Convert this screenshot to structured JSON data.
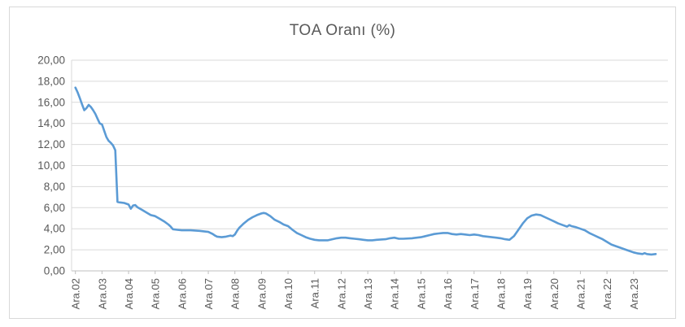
{
  "chart_data": {
    "type": "line",
    "title": "TOA Oranı (%)",
    "xlabel": "",
    "ylabel": "",
    "ylim": [
      0,
      20
    ],
    "y_step": 2,
    "grid": true,
    "legend": "none",
    "y_tick_labels": [
      "0,00",
      "2,00",
      "4,00",
      "6,00",
      "8,00",
      "10,00",
      "12,00",
      "14,00",
      "16,00",
      "18,00",
      "20,00"
    ],
    "x_tick_labels": [
      "Ara.02",
      "Ara.03",
      "Ara.04",
      "Ara.05",
      "Ara.06",
      "Ara.07",
      "Ara.08",
      "Ara.09",
      "Ara.10",
      "Ara.11",
      "Ara.12",
      "Ara.13",
      "Ara.14",
      "Ara.15",
      "Ara.16",
      "Ara.17",
      "Ara.18",
      "Ara.19",
      "Ara.20",
      "Ara.21",
      "Ara.22",
      "Ara.23"
    ],
    "x_unit": "months after Ara.02 (Dec 2002); 12 months = 1 x-tick interval",
    "colors": {
      "line": "#5b9bd5",
      "grid": "#d9d9d9",
      "axis": "#bfbfbf",
      "text": "#595959",
      "border": "#d9d9d9"
    },
    "series": [
      {
        "name": "TOA Oranı (%)",
        "points": [
          [
            0,
            17.4
          ],
          [
            1,
            16.95
          ],
          [
            2,
            16.4
          ],
          [
            3,
            15.8
          ],
          [
            4,
            15.25
          ],
          [
            5,
            15.45
          ],
          [
            6,
            15.75
          ],
          [
            7,
            15.55
          ],
          [
            8,
            15.25
          ],
          [
            9,
            14.9
          ],
          [
            10,
            14.45
          ],
          [
            11,
            14.0
          ],
          [
            12,
            13.9
          ],
          [
            13,
            13.3
          ],
          [
            14,
            12.7
          ],
          [
            15,
            12.35
          ],
          [
            16,
            12.15
          ],
          [
            17,
            11.9
          ],
          [
            18,
            11.45
          ],
          [
            19,
            6.55
          ],
          [
            20,
            6.5
          ],
          [
            22,
            6.45
          ],
          [
            24,
            6.3
          ],
          [
            25,
            5.9
          ],
          [
            26,
            6.2
          ],
          [
            27,
            6.25
          ],
          [
            28,
            6.05
          ],
          [
            30,
            5.8
          ],
          [
            32,
            5.55
          ],
          [
            34,
            5.3
          ],
          [
            36,
            5.2
          ],
          [
            38,
            4.95
          ],
          [
            40,
            4.7
          ],
          [
            42,
            4.4
          ],
          [
            43,
            4.2
          ],
          [
            44,
            3.95
          ],
          [
            46,
            3.9
          ],
          [
            48,
            3.85
          ],
          [
            52,
            3.85
          ],
          [
            56,
            3.8
          ],
          [
            58,
            3.75
          ],
          [
            60,
            3.7
          ],
          [
            62,
            3.5
          ],
          [
            63,
            3.35
          ],
          [
            64,
            3.25
          ],
          [
            66,
            3.2
          ],
          [
            68,
            3.25
          ],
          [
            70,
            3.35
          ],
          [
            71,
            3.3
          ],
          [
            72,
            3.45
          ],
          [
            73,
            3.8
          ],
          [
            74,
            4.1
          ],
          [
            76,
            4.5
          ],
          [
            78,
            4.85
          ],
          [
            80,
            5.1
          ],
          [
            82,
            5.3
          ],
          [
            84,
            5.45
          ],
          [
            85,
            5.5
          ],
          [
            86,
            5.45
          ],
          [
            88,
            5.2
          ],
          [
            90,
            4.85
          ],
          [
            92,
            4.65
          ],
          [
            94,
            4.4
          ],
          [
            96,
            4.25
          ],
          [
            98,
            3.9
          ],
          [
            100,
            3.6
          ],
          [
            102,
            3.4
          ],
          [
            104,
            3.2
          ],
          [
            106,
            3.05
          ],
          [
            108,
            2.95
          ],
          [
            110,
            2.9
          ],
          [
            112,
            2.9
          ],
          [
            114,
            2.9
          ],
          [
            116,
            3.0
          ],
          [
            118,
            3.1
          ],
          [
            120,
            3.15
          ],
          [
            122,
            3.15
          ],
          [
            124,
            3.1
          ],
          [
            126,
            3.05
          ],
          [
            128,
            3.0
          ],
          [
            130,
            2.95
          ],
          [
            132,
            2.9
          ],
          [
            134,
            2.9
          ],
          [
            136,
            2.95
          ],
          [
            140,
            3.0
          ],
          [
            142,
            3.1
          ],
          [
            144,
            3.15
          ],
          [
            146,
            3.05
          ],
          [
            148,
            3.05
          ],
          [
            152,
            3.1
          ],
          [
            156,
            3.2
          ],
          [
            158,
            3.3
          ],
          [
            160,
            3.4
          ],
          [
            162,
            3.5
          ],
          [
            164,
            3.55
          ],
          [
            166,
            3.6
          ],
          [
            168,
            3.6
          ],
          [
            170,
            3.5
          ],
          [
            172,
            3.45
          ],
          [
            174,
            3.5
          ],
          [
            176,
            3.45
          ],
          [
            178,
            3.4
          ],
          [
            180,
            3.45
          ],
          [
            182,
            3.4
          ],
          [
            184,
            3.3
          ],
          [
            186,
            3.25
          ],
          [
            188,
            3.2
          ],
          [
            190,
            3.15
          ],
          [
            192,
            3.1
          ],
          [
            194,
            3.0
          ],
          [
            196,
            2.95
          ],
          [
            198,
            3.3
          ],
          [
            200,
            3.9
          ],
          [
            202,
            4.5
          ],
          [
            204,
            5.0
          ],
          [
            206,
            5.25
          ],
          [
            208,
            5.35
          ],
          [
            210,
            5.3
          ],
          [
            212,
            5.1
          ],
          [
            214,
            4.9
          ],
          [
            216,
            4.7
          ],
          [
            218,
            4.5
          ],
          [
            220,
            4.35
          ],
          [
            222,
            4.2
          ],
          [
            223,
            4.35
          ],
          [
            224,
            4.25
          ],
          [
            226,
            4.15
          ],
          [
            228,
            4.0
          ],
          [
            230,
            3.85
          ],
          [
            232,
            3.6
          ],
          [
            234,
            3.4
          ],
          [
            236,
            3.2
          ],
          [
            238,
            3.0
          ],
          [
            240,
            2.75
          ],
          [
            242,
            2.5
          ],
          [
            244,
            2.35
          ],
          [
            246,
            2.2
          ],
          [
            248,
            2.05
          ],
          [
            250,
            1.9
          ],
          [
            252,
            1.75
          ],
          [
            254,
            1.65
          ],
          [
            256,
            1.6
          ],
          [
            257,
            1.68
          ],
          [
            258,
            1.6
          ],
          [
            260,
            1.55
          ],
          [
            262,
            1.6
          ]
        ]
      }
    ]
  }
}
